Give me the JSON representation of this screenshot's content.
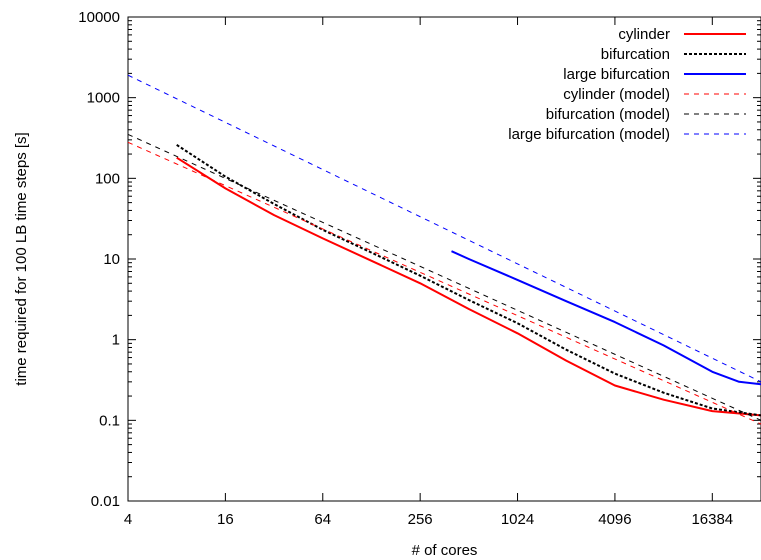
{
  "chart_data": {
    "type": "line",
    "title": "",
    "xlabel": "# of cores",
    "ylabel": "time required for 100 LB time steps [s]",
    "xscale": "log2",
    "yscale": "log10",
    "xlim": [
      4,
      32768
    ],
    "ylim": [
      0.01,
      10000
    ],
    "xticks": [
      4,
      16,
      64,
      256,
      1024,
      4096,
      16384
    ],
    "xtick_labels": [
      "4",
      "16",
      "64",
      "256",
      "1024",
      "4096",
      "16384"
    ],
    "yticks": [
      0.01,
      0.1,
      1,
      10,
      100,
      1000,
      10000
    ],
    "ytick_labels": [
      "0.01",
      "0.1",
      "1",
      "10",
      "100",
      "1000",
      "10000"
    ],
    "grid": false,
    "legend_position": "top-right",
    "series": [
      {
        "name": "cylinder",
        "style": "solid",
        "color": "#ff0000",
        "x": [
          8,
          16,
          32,
          64,
          128,
          256,
          512,
          1024,
          2048,
          4096,
          8192,
          16384,
          32768
        ],
        "y": [
          180,
          75,
          35,
          18,
          9.5,
          5,
          2.4,
          1.2,
          0.55,
          0.27,
          0.18,
          0.13,
          0.115
        ]
      },
      {
        "name": "bifurcation",
        "style": "dotted",
        "color": "#000000",
        "x": [
          8,
          16,
          32,
          64,
          128,
          256,
          512,
          1024,
          2048,
          4096,
          8192,
          16384,
          32768
        ],
        "y": [
          260,
          105,
          48,
          23,
          12,
          6.2,
          3.1,
          1.6,
          0.75,
          0.38,
          0.22,
          0.14,
          0.115
        ]
      },
      {
        "name": "large bifurcation",
        "style": "solid",
        "color": "#0000ff",
        "x": [
          400,
          512,
          1024,
          2048,
          4096,
          8192,
          16384,
          24000,
          32768
        ],
        "y": [
          12.5,
          10,
          5.5,
          3,
          1.65,
          0.85,
          0.4,
          0.3,
          0.28
        ]
      },
      {
        "name": "cylinder (model)",
        "style": "dashed",
        "color": "#ff0000",
        "x": [
          4,
          32768
        ],
        "y": [
          280,
          0.09
        ]
      },
      {
        "name": "bifurcation (model)",
        "style": "dashed",
        "color": "#000000",
        "x": [
          4,
          32768
        ],
        "y": [
          350,
          0.1
        ]
      },
      {
        "name": "large bifurcation (model)",
        "style": "dashed",
        "color": "#0000ff",
        "x": [
          4,
          32768
        ],
        "y": [
          1900,
          0.3
        ]
      }
    ]
  }
}
